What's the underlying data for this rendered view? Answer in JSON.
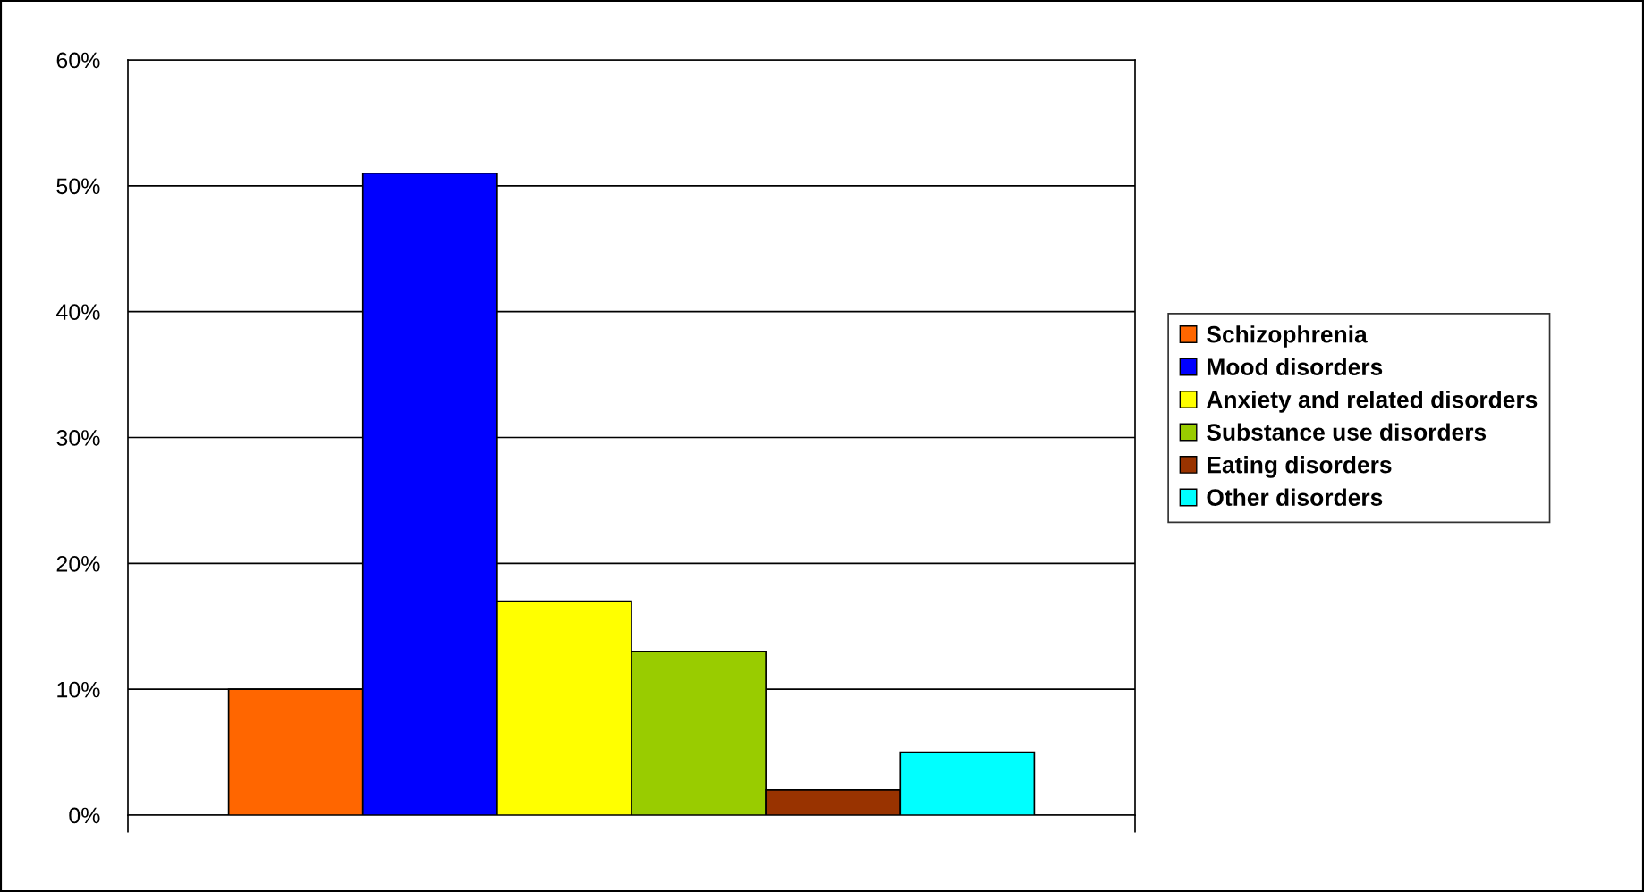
{
  "chart_data": {
    "type": "bar",
    "categories": [
      null
    ],
    "series": [
      {
        "name": "Schizophrenia",
        "color": "#ff6600",
        "values": [
          10
        ]
      },
      {
        "name": "Mood disorders",
        "color": "#0000ff",
        "values": [
          51
        ]
      },
      {
        "name": "Anxiety and related disorders",
        "color": "#ffff00",
        "values": [
          17
        ]
      },
      {
        "name": "Substance use disorders",
        "color": "#99cc00",
        "values": [
          13
        ]
      },
      {
        "name": "Eating disorders",
        "color": "#993300",
        "values": [
          2
        ]
      },
      {
        "name": "Other disorders",
        "color": "#00ffff",
        "values": [
          5
        ]
      }
    ],
    "ylim": [
      0,
      60
    ],
    "yticks": [
      {
        "value": 0,
        "label": "0%"
      },
      {
        "value": 10,
        "label": "10%"
      },
      {
        "value": 20,
        "label": "20%"
      },
      {
        "value": 30,
        "label": "30%"
      },
      {
        "value": 40,
        "label": "40%"
      },
      {
        "value": 50,
        "label": "50%"
      },
      {
        "value": 60,
        "label": "60%"
      }
    ],
    "grid": "y",
    "legend": "right"
  }
}
